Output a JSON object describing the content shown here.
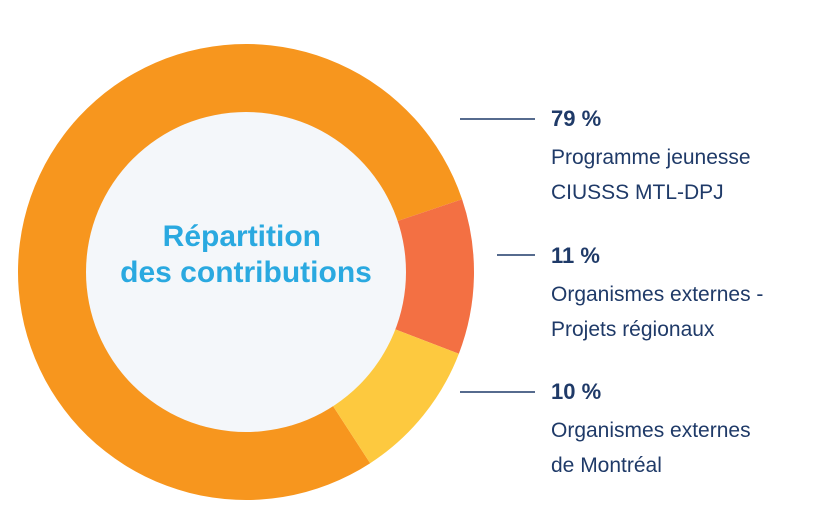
{
  "chart_data": {
    "type": "pie",
    "title": [
      "Répartition",
      "des contributions"
    ],
    "slices": [
      {
        "value": 79,
        "value_label": "79 %",
        "label_lines": [
          "Programme jeunesse",
          "CIUSSS MTL-DPJ"
        ],
        "color": "#f7961e"
      },
      {
        "value": 11,
        "value_label": "11 %",
        "label_lines": [
          "Organismes externes -",
          "Projets régionaux"
        ],
        "color": "#f37043"
      },
      {
        "value": 10,
        "value_label": "10 %",
        "label_lines": [
          "Organismes externes",
          "de Montréal"
        ],
        "color": "#fdc93f"
      }
    ],
    "center_fill": "#f4f7fa",
    "title_color": "#2aa9e0",
    "text_color": "#1f3a68",
    "leader_color": "#1f3a68"
  }
}
